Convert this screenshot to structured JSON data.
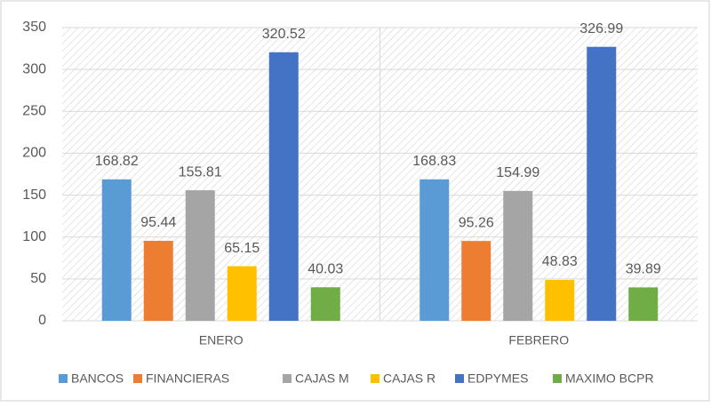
{
  "chart_data": {
    "type": "bar",
    "categories": [
      "ENERO",
      "FEBRERO"
    ],
    "series": [
      {
        "name": "BANCOS",
        "color": "#5b9bd5",
        "values": [
          168.82,
          168.83
        ]
      },
      {
        "name": "FINANCIERAS",
        "color": "#ed7d31",
        "values": [
          95.44,
          95.26
        ]
      },
      {
        "name": "CAJAS M",
        "color": "#a5a5a5",
        "values": [
          155.81,
          154.99
        ]
      },
      {
        "name": "CAJAS R",
        "color": "#ffc000",
        "values": [
          65.15,
          48.83
        ]
      },
      {
        "name": "EDPYMES",
        "color": "#4472c4",
        "values": [
          320.52,
          326.99
        ]
      },
      {
        "name": "MAXIMO BCPR",
        "color": "#70ad47",
        "values": [
          40.03,
          39.89
        ]
      }
    ],
    "ylim": [
      0,
      350
    ],
    "yticks": [
      0,
      50,
      100,
      150,
      200,
      250,
      300,
      350
    ],
    "grid": true,
    "legend": "bottom"
  }
}
